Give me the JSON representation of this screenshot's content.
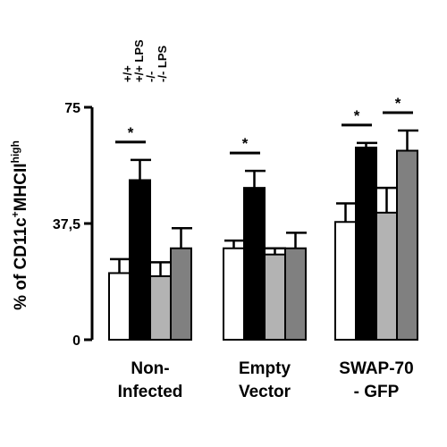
{
  "chart_data": {
    "type": "bar",
    "title": "",
    "xlabel": "",
    "ylabel": {
      "prefix": "% of CD11c",
      "sup1": "+",
      "mid": "MHCII",
      "sup2": "high"
    },
    "ylim": [
      0,
      75
    ],
    "yticks": [
      0,
      37.5,
      75
    ],
    "ytick_labels": [
      "0",
      "37,5",
      "75"
    ],
    "grid": false,
    "legend_position": "top-left, vertical",
    "groups": [
      {
        "label_lines": [
          "Non-",
          "Infected"
        ],
        "sig_pairs": [
          [
            0,
            1
          ]
        ]
      },
      {
        "label_lines": [
          "Empty",
          "Vector"
        ],
        "sig_pairs": [
          [
            0,
            1
          ]
        ]
      },
      {
        "label_lines": [
          "SWAP-70",
          "- GFP"
        ],
        "sig_pairs": [
          [
            0,
            1
          ],
          [
            2,
            3
          ]
        ]
      }
    ],
    "significance_marker": "*",
    "series": [
      {
        "name": "+/+",
        "fill": "#ffffff",
        "values": [
          21.5,
          29.5,
          38
        ],
        "errors": [
          4.5,
          2.5,
          6
        ]
      },
      {
        "name": "+/+ LPS",
        "fill": "#000000",
        "values": [
          51.5,
          49,
          62
        ],
        "errors": [
          6.5,
          5.5,
          1.5
        ]
      },
      {
        "name": "-/-",
        "fill": "#b3b3b3",
        "values": [
          20.5,
          27.5,
          41
        ],
        "errors": [
          4.5,
          2,
          8
        ]
      },
      {
        "name": "-/- LPS",
        "fill": "#808080",
        "values": [
          29.5,
          29.5,
          61
        ],
        "errors": [
          6.5,
          5,
          6.5
        ]
      }
    ]
  }
}
